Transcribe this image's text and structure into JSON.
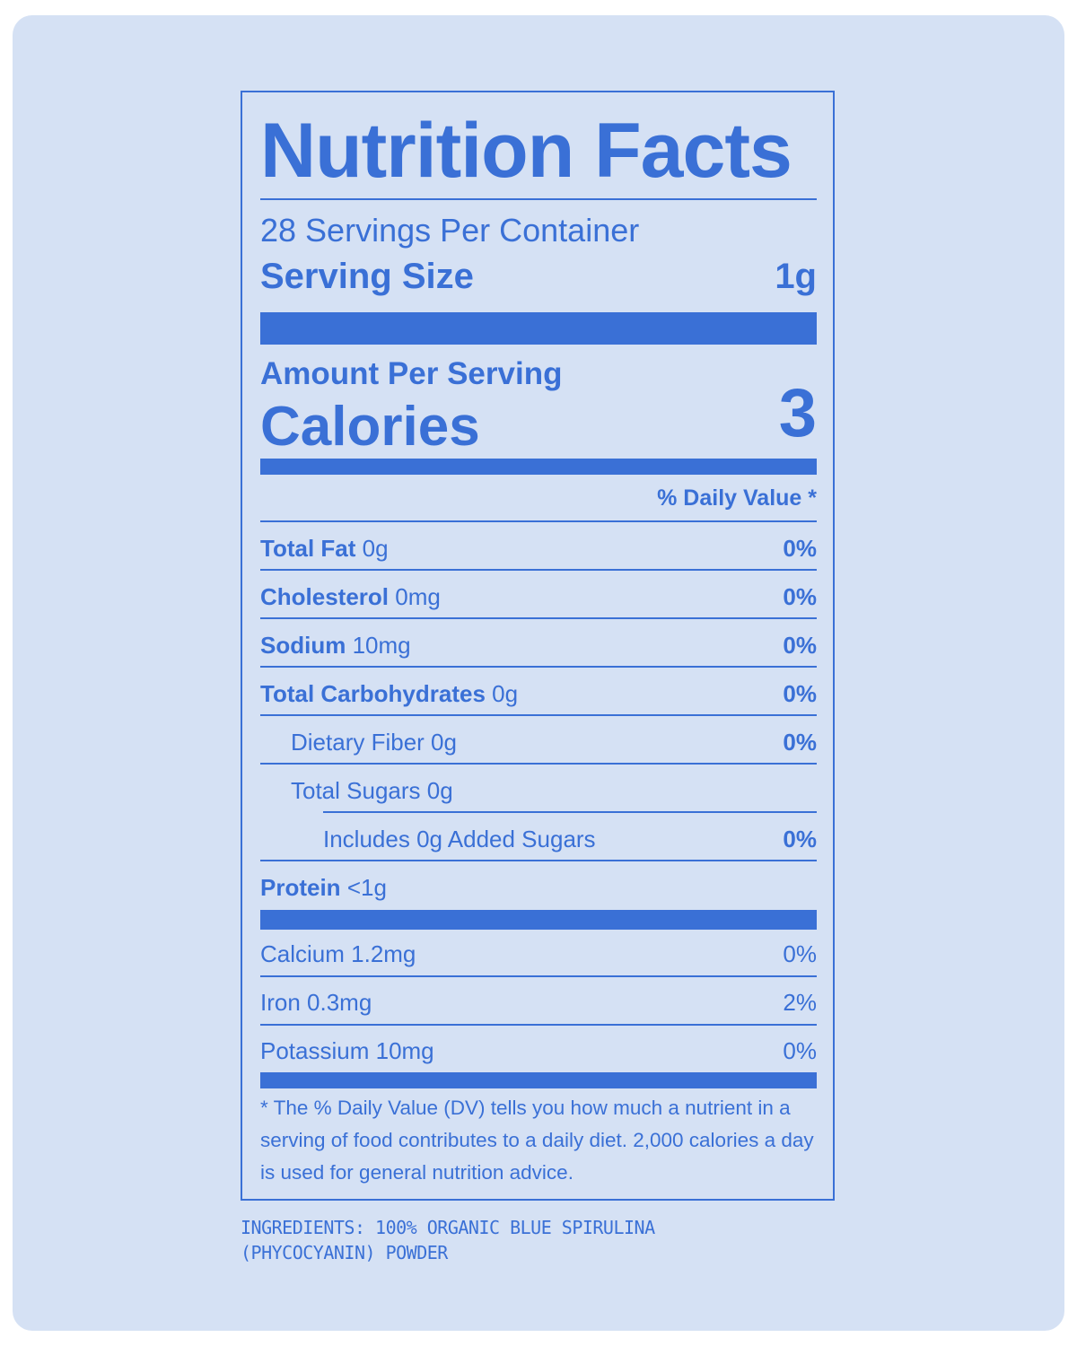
{
  "label": {
    "title": "Nutrition Facts",
    "servings_per_container": "28 Servings Per Container",
    "serving_size_label": "Serving Size",
    "serving_size_value": "1g",
    "amount_per_serving": "Amount Per Serving",
    "calories_label": "Calories",
    "calories_value": "3",
    "daily_value_header": "% Daily Value *",
    "nutrients": [
      {
        "name": "Total Fat",
        "amount": "0g",
        "dv": "0%"
      },
      {
        "name": "Cholesterol",
        "amount": "0mg",
        "dv": "0%"
      },
      {
        "name": "Sodium",
        "amount": "10mg",
        "dv": "0%"
      },
      {
        "name": "Total Carbohydrates",
        "amount": "0g",
        "dv": "0%"
      },
      {
        "name": "Dietary Fiber 0g",
        "dv": "0%"
      },
      {
        "name": "Total Sugars 0g"
      },
      {
        "name": "Includes 0g Added Sugars",
        "dv": "0%"
      },
      {
        "name": "Protein",
        "amount": "<1g"
      }
    ],
    "minerals": [
      {
        "name": "Calcium 1.2mg",
        "dv": "0%"
      },
      {
        "name": "Iron 0.3mg",
        "dv": "2%"
      },
      {
        "name": "Potassium 10mg",
        "dv": "0%"
      }
    ],
    "footnote": "* The % Daily Value (DV) tells you how much a nutrient in a serving of food contributes to a daily diet. 2,000 calories a day is used for general nutrition advice."
  },
  "ingredients": "INGREDIENTS: 100% ORGANIC BLUE SPIRULINA (PHYCOCYANIN) POWDER",
  "colors": {
    "accent": "#3a70d6",
    "background": "#d5e1f4"
  }
}
